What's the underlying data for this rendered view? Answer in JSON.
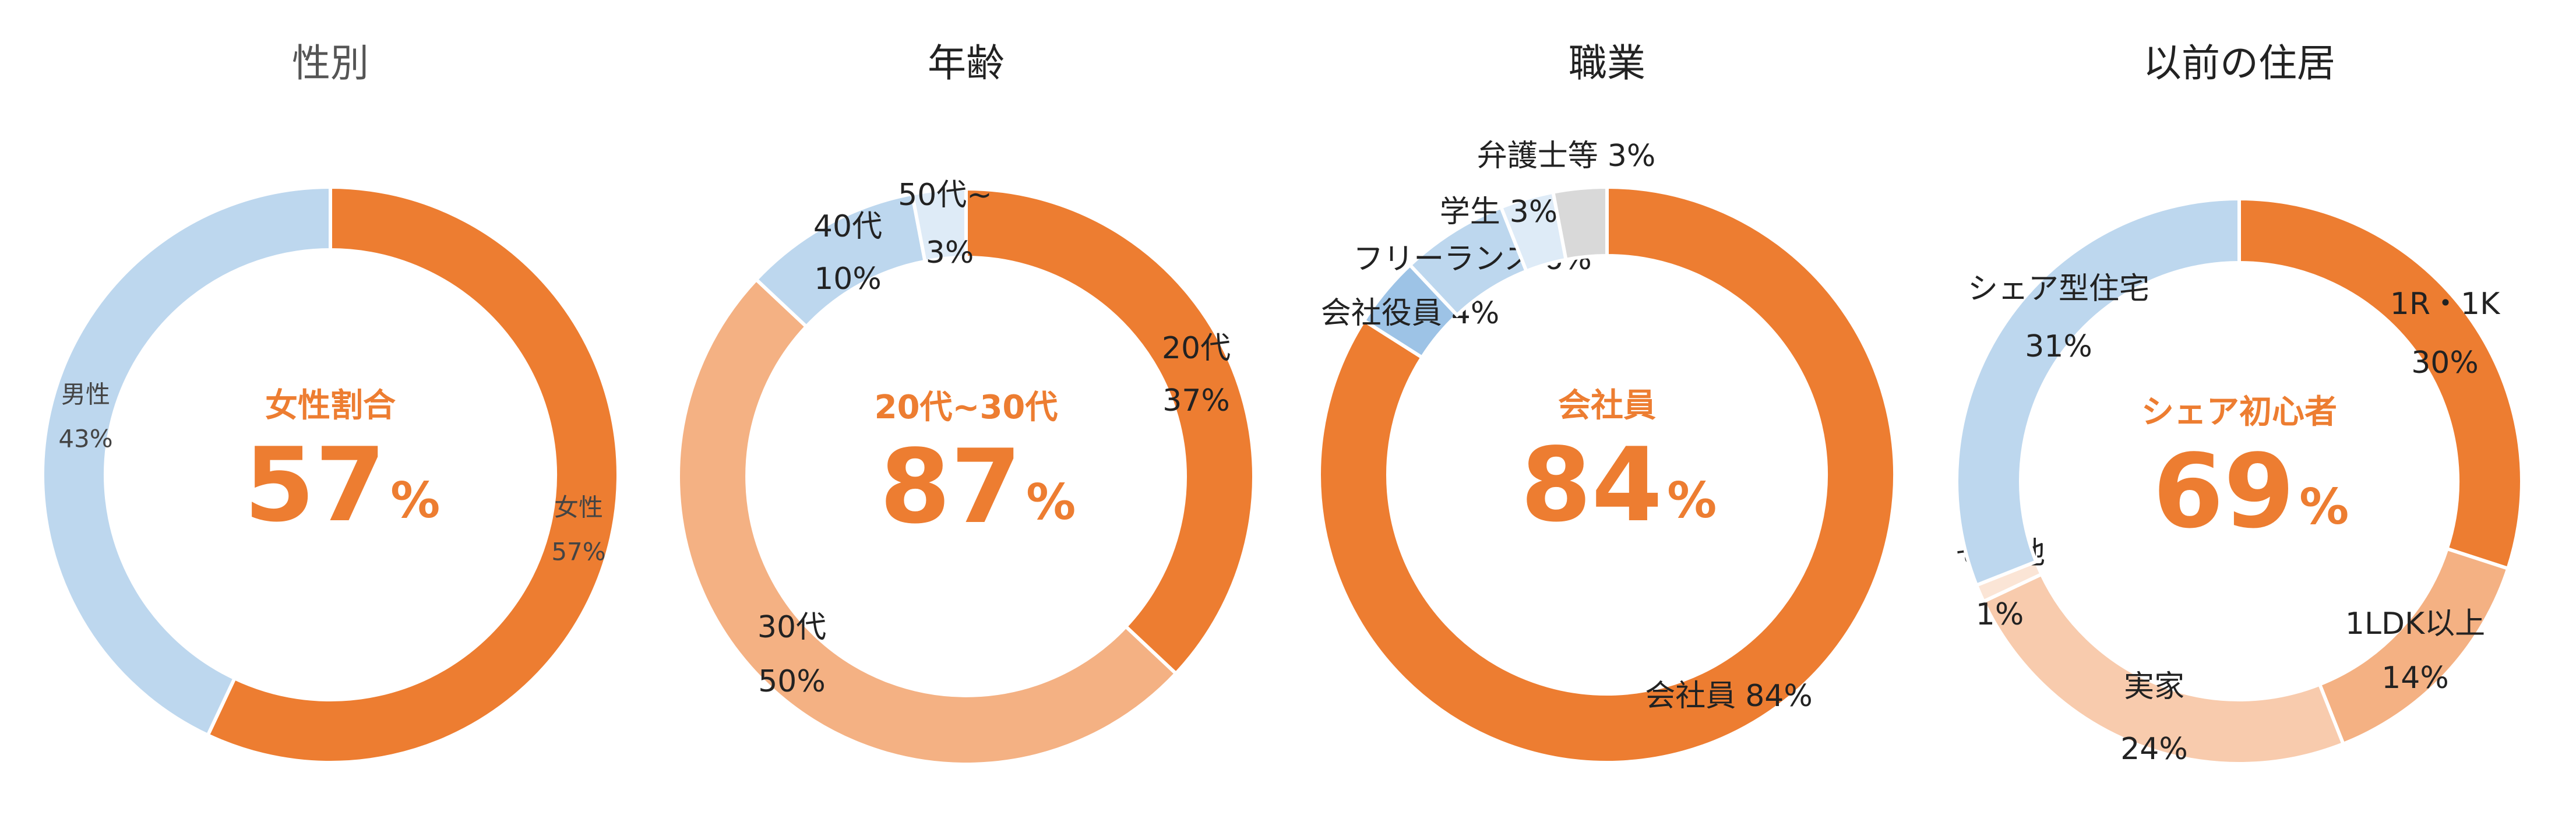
{
  "chart_data": [
    {
      "type": "donut",
      "title": "性別",
      "center_label": "女性割合",
      "center_value": 57,
      "center_unit": "%",
      "categories": [
        "女性",
        "男性"
      ],
      "values": [
        57,
        43
      ],
      "value_labels": [
        "57%",
        "43%"
      ],
      "colors": [
        "#ED7D31",
        "#BDD7EE"
      ]
    },
    {
      "type": "donut",
      "title": "年齢",
      "center_label": "20代~30代",
      "center_value": 87,
      "center_unit": "%",
      "categories": [
        "20代",
        "30代",
        "40代",
        "50代~"
      ],
      "values": [
        37,
        50,
        10,
        3
      ],
      "value_labels": [
        "37%",
        "50%",
        "10%",
        "3%"
      ],
      "colors": [
        "#ED7D31",
        "#F4B183",
        "#BDD7EE",
        "#DEEBF7"
      ]
    },
    {
      "type": "donut",
      "title": "職業",
      "center_label": "会社員",
      "center_value": 84,
      "center_unit": "%",
      "categories": [
        "会社員",
        "会社役員",
        "フリーランス",
        "学生",
        "弁護士等"
      ],
      "values": [
        84,
        4,
        6,
        3,
        3
      ],
      "value_labels": [
        "84%",
        "4%",
        "6%",
        "3%",
        "3%"
      ],
      "colors": [
        "#ED7D31",
        "#9DC3E6",
        "#BDD7EE",
        "#DEEBF7",
        "#D9D9D9"
      ]
    },
    {
      "type": "donut",
      "title": "以前の住居",
      "center_label": "シェア初心者",
      "center_value": 69,
      "center_unit": "%",
      "categories": [
        "1R・1K",
        "1LDK以上",
        "実家",
        "その他",
        "シェア型住宅"
      ],
      "values": [
        30,
        14,
        24,
        1,
        31
      ],
      "value_labels": [
        "30%",
        "14%",
        "24%",
        "1%",
        "31%"
      ],
      "colors": [
        "#ED7D31",
        "#F4B183",
        "#F8CBAD",
        "#FBE5D6",
        "#BDD7EE"
      ]
    }
  ]
}
